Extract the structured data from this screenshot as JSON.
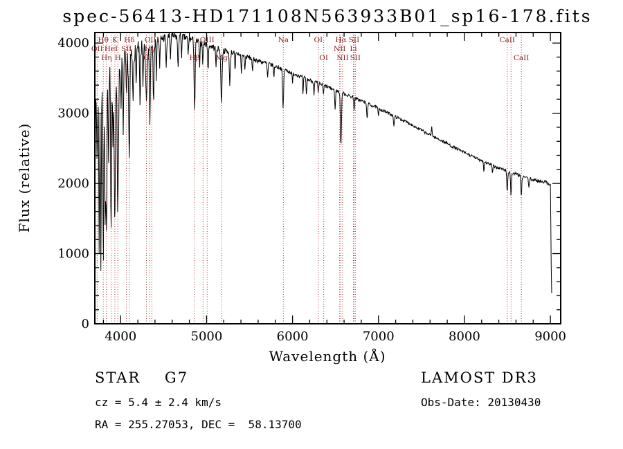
{
  "chart_data": {
    "type": "line",
    "title": "spec-56413-HD171108N563933B01_sp16-178.fits",
    "xlabel": "Wavelength (Å)",
    "ylabel": "Flux (relative)",
    "series_name": "flux",
    "xlim": [
      3700,
      9120
    ],
    "ylim": [
      0,
      4150
    ],
    "xticks": [
      4000,
      5000,
      6000,
      7000,
      8000,
      9000
    ],
    "yticks": [
      0,
      1000,
      2000,
      3000,
      4000
    ],
    "x_minor_step": 200,
    "y_minor_step": 200,
    "grid": false,
    "line_color": "#000000",
    "marker_color": "#a03232",
    "marker_label_color": "#8b1a1a",
    "marker_rows_y": [
      61,
      74,
      87
    ],
    "envelope": [
      [
        3700,
        2300
      ],
      [
        3708,
        2850
      ],
      [
        3716,
        3100
      ],
      [
        3726,
        3250
      ],
      [
        3740,
        3400
      ],
      [
        3760,
        3500
      ],
      [
        3780,
        3560
      ],
      [
        3800,
        3600
      ],
      [
        3830,
        3610
      ],
      [
        3860,
        3600
      ],
      [
        3900,
        3600
      ],
      [
        3940,
        3640
      ],
      [
        3980,
        3680
      ],
      [
        4020,
        3720
      ],
      [
        4060,
        3750
      ],
      [
        4100,
        3780
      ],
      [
        4140,
        3840
      ],
      [
        4180,
        3900
      ],
      [
        4220,
        3930
      ],
      [
        4260,
        3940
      ],
      [
        4300,
        3950
      ],
      [
        4340,
        3980
      ],
      [
        4380,
        4000
      ],
      [
        4420,
        4030
      ],
      [
        4460,
        4060
      ],
      [
        4500,
        4075
      ],
      [
        4550,
        4085
      ],
      [
        4600,
        4090
      ],
      [
        4650,
        4090
      ],
      [
        4700,
        4085
      ],
      [
        4750,
        4075
      ],
      [
        4800,
        4060
      ],
      [
        4850,
        4040
      ],
      [
        4900,
        4020
      ],
      [
        4950,
        4000
      ],
      [
        5000,
        3980
      ],
      [
        5050,
        3955
      ],
      [
        5100,
        3930
      ],
      [
        5150,
        3910
      ],
      [
        5200,
        3890
      ],
      [
        5250,
        3880
      ],
      [
        5300,
        3865
      ],
      [
        5350,
        3850
      ],
      [
        5400,
        3830
      ],
      [
        5450,
        3810
      ],
      [
        5500,
        3790
      ],
      [
        5550,
        3770
      ],
      [
        5600,
        3750
      ],
      [
        5650,
        3730
      ],
      [
        5700,
        3710
      ],
      [
        5750,
        3690
      ],
      [
        5800,
        3670
      ],
      [
        5850,
        3650
      ],
      [
        5900,
        3620
      ],
      [
        5950,
        3600
      ],
      [
        6000,
        3570
      ],
      [
        6050,
        3550
      ],
      [
        6100,
        3520
      ],
      [
        6150,
        3500
      ],
      [
        6200,
        3470
      ],
      [
        6250,
        3450
      ],
      [
        6300,
        3430
      ],
      [
        6350,
        3400
      ],
      [
        6400,
        3380
      ],
      [
        6450,
        3350
      ],
      [
        6500,
        3330
      ],
      [
        6550,
        3300
      ],
      [
        6600,
        3280
      ],
      [
        6650,
        3250
      ],
      [
        6700,
        3230
      ],
      [
        6750,
        3200
      ],
      [
        6800,
        3180
      ],
      [
        6850,
        3150
      ],
      [
        6900,
        3120
      ],
      [
        6950,
        3100
      ],
      [
        7000,
        3070
      ],
      [
        7050,
        3040
      ],
      [
        7100,
        3010
      ],
      [
        7150,
        2980
      ],
      [
        7200,
        2950
      ],
      [
        7250,
        2920
      ],
      [
        7300,
        2890
      ],
      [
        7350,
        2860
      ],
      [
        7400,
        2830
      ],
      [
        7450,
        2790
      ],
      [
        7500,
        2760
      ],
      [
        7550,
        2720
      ],
      [
        7600,
        2690
      ],
      [
        7650,
        2660
      ],
      [
        7700,
        2630
      ],
      [
        7750,
        2600
      ],
      [
        7800,
        2570
      ],
      [
        7850,
        2530
      ],
      [
        7900,
        2500
      ],
      [
        7950,
        2470
      ],
      [
        8000,
        2440
      ],
      [
        8050,
        2410
      ],
      [
        8100,
        2380
      ],
      [
        8150,
        2350
      ],
      [
        8200,
        2330
      ],
      [
        8250,
        2300
      ],
      [
        8300,
        2270
      ],
      [
        8350,
        2240
      ],
      [
        8400,
        2220
      ],
      [
        8450,
        2200
      ],
      [
        8500,
        2170
      ],
      [
        8550,
        2150
      ],
      [
        8600,
        2130
      ],
      [
        8650,
        2110
      ],
      [
        8700,
        2090
      ],
      [
        8750,
        2070
      ],
      [
        8800,
        2050
      ],
      [
        8850,
        2040
      ],
      [
        8900,
        2030
      ],
      [
        8950,
        2020
      ],
      [
        9000,
        1980
      ],
      [
        9004,
        1600
      ],
      [
        9008,
        1000
      ],
      [
        9012,
        600
      ],
      [
        9016,
        400
      ]
    ],
    "line_features": [
      [
        3727,
        900,
        5
      ],
      [
        3750,
        2300,
        5
      ],
      [
        3770,
        2600,
        5
      ],
      [
        3798,
        2700,
        6
      ],
      [
        3820,
        1900,
        5
      ],
      [
        3835,
        2400,
        6
      ],
      [
        3860,
        1400,
        5
      ],
      [
        3889,
        2100,
        6
      ],
      [
        3912,
        1000,
        4
      ],
      [
        3933,
        2300,
        7
      ],
      [
        3968,
        2100,
        7
      ],
      [
        4005,
        800,
        4
      ],
      [
        4030,
        900,
        5
      ],
      [
        4068,
        700,
        4
      ],
      [
        4101,
        1500,
        6
      ],
      [
        4144,
        700,
        5
      ],
      [
        4180,
        500,
        4
      ],
      [
        4226,
        900,
        5
      ],
      [
        4260,
        500,
        4
      ],
      [
        4300,
        800,
        9
      ],
      [
        4340,
        1100,
        6
      ],
      [
        4383,
        800,
        5
      ],
      [
        4415,
        500,
        4
      ],
      [
        4455,
        450,
        4
      ],
      [
        4531,
        420,
        5
      ],
      [
        4580,
        300,
        4
      ],
      [
        4668,
        450,
        5
      ],
      [
        4710,
        250,
        4
      ],
      [
        4786,
        250,
        4
      ],
      [
        4861,
        1000,
        6
      ],
      [
        4920,
        400,
        4
      ],
      [
        4957,
        300,
        4
      ],
      [
        5018,
        400,
        4
      ],
      [
        5110,
        300,
        4
      ],
      [
        5173,
        750,
        7
      ],
      [
        5270,
        450,
        6
      ],
      [
        5332,
        280,
        4
      ],
      [
        5405,
        280,
        4
      ],
      [
        5446,
        200,
        4
      ],
      [
        5535,
        200,
        4
      ],
      [
        5710,
        200,
        5
      ],
      [
        5783,
        180,
        4
      ],
      [
        5890,
        560,
        6
      ],
      [
        6000,
        150,
        4
      ],
      [
        6122,
        260,
        4
      ],
      [
        6162,
        240,
        4
      ],
      [
        6250,
        180,
        4
      ],
      [
        6300,
        160,
        4
      ],
      [
        6360,
        140,
        4
      ],
      [
        6495,
        260,
        5
      ],
      [
        6563,
        780,
        6
      ],
      [
        6717,
        180,
        4
      ],
      [
        6867,
        220,
        5
      ],
      [
        7000,
        120,
        4
      ],
      [
        7180,
        150,
        5
      ],
      [
        7620,
        -150,
        4
      ],
      [
        8227,
        150,
        4
      ],
      [
        8327,
        120,
        4
      ],
      [
        8498,
        300,
        5
      ],
      [
        8542,
        340,
        5
      ],
      [
        8662,
        320,
        5
      ],
      [
        8750,
        150,
        4
      ]
    ],
    "noise": {
      "seed": 7,
      "step": 5,
      "profile": [
        [
          3700,
          300
        ],
        [
          3750,
          300
        ],
        [
          3800,
          280
        ],
        [
          3850,
          260
        ],
        [
          3900,
          240
        ],
        [
          3950,
          220
        ],
        [
          4000,
          190
        ],
        [
          4100,
          150
        ],
        [
          4200,
          110
        ],
        [
          4300,
          90
        ],
        [
          4400,
          75
        ],
        [
          4600,
          60
        ],
        [
          4800,
          55
        ],
        [
          5000,
          45
        ],
        [
          5500,
          35
        ],
        [
          6000,
          28
        ],
        [
          6500,
          25
        ],
        [
          7000,
          22
        ],
        [
          7500,
          20
        ],
        [
          8000,
          20
        ],
        [
          8500,
          22
        ],
        [
          9016,
          24
        ]
      ]
    },
    "spectral_markers": [
      {
        "wavelength": 3727,
        "label": "OII",
        "row": 2
      },
      {
        "wavelength": 3798,
        "label": "Hθ",
        "row": 1
      },
      {
        "wavelength": 3835,
        "label": "Hη",
        "row": 3
      },
      {
        "wavelength": 3889,
        "label": "HeI",
        "row": 2
      },
      {
        "wavelength": 3933,
        "label": "K",
        "row": 1
      },
      {
        "wavelength": 3968,
        "label": "H",
        "row": 3
      },
      {
        "wavelength": 4068,
        "label": "SII",
        "row": 2
      },
      {
        "wavelength": 4101,
        "label": "Hδ",
        "row": 1
      },
      {
        "wavelength": 4300,
        "label": "G",
        "row": 3
      },
      {
        "wavelength": 4340,
        "label": "Hγ",
        "row": 2
      },
      {
        "wavelength": 4363,
        "label": "OIII",
        "row": 1
      },
      {
        "wavelength": 4861,
        "label": "Hβ",
        "row": 3
      },
      {
        "wavelength": 4959,
        "label": "",
        "row": 1
      },
      {
        "wavelength": 5007,
        "label": "OIII",
        "row": 1
      },
      {
        "wavelength": 5175,
        "label": "Mg",
        "row": 3
      },
      {
        "wavelength": 5893,
        "label": "Na",
        "row": 1
      },
      {
        "wavelength": 6300,
        "label": "OI",
        "row": 1
      },
      {
        "wavelength": 6363,
        "label": "OI",
        "row": 3
      },
      {
        "wavelength": 6548,
        "label": "NII",
        "row": 2
      },
      {
        "wavelength": 6563,
        "label": "Hα",
        "row": 1
      },
      {
        "wavelength": 6583,
        "label": "NII",
        "row": 3
      },
      {
        "wavelength": 6708,
        "label": "Li",
        "row": 2
      },
      {
        "wavelength": 6716,
        "label": "SII",
        "row": 1
      },
      {
        "wavelength": 6731,
        "label": "SII",
        "row": 3
      },
      {
        "wavelength": 8498,
        "label": "CaII",
        "row": 1
      },
      {
        "wavelength": 8542,
        "label": "",
        "row": 2
      },
      {
        "wavelength": 8662,
        "label": "CaII",
        "row": 3
      }
    ]
  },
  "annotations": {
    "object_type": "STAR    G7",
    "cz": "cz = 5.4 ± 2.4 km/s",
    "radec": "RA = 255.27053, DEC =  58.13700",
    "survey": "LAMOST DR3",
    "obs_date": "Obs-Date: 20130430"
  }
}
